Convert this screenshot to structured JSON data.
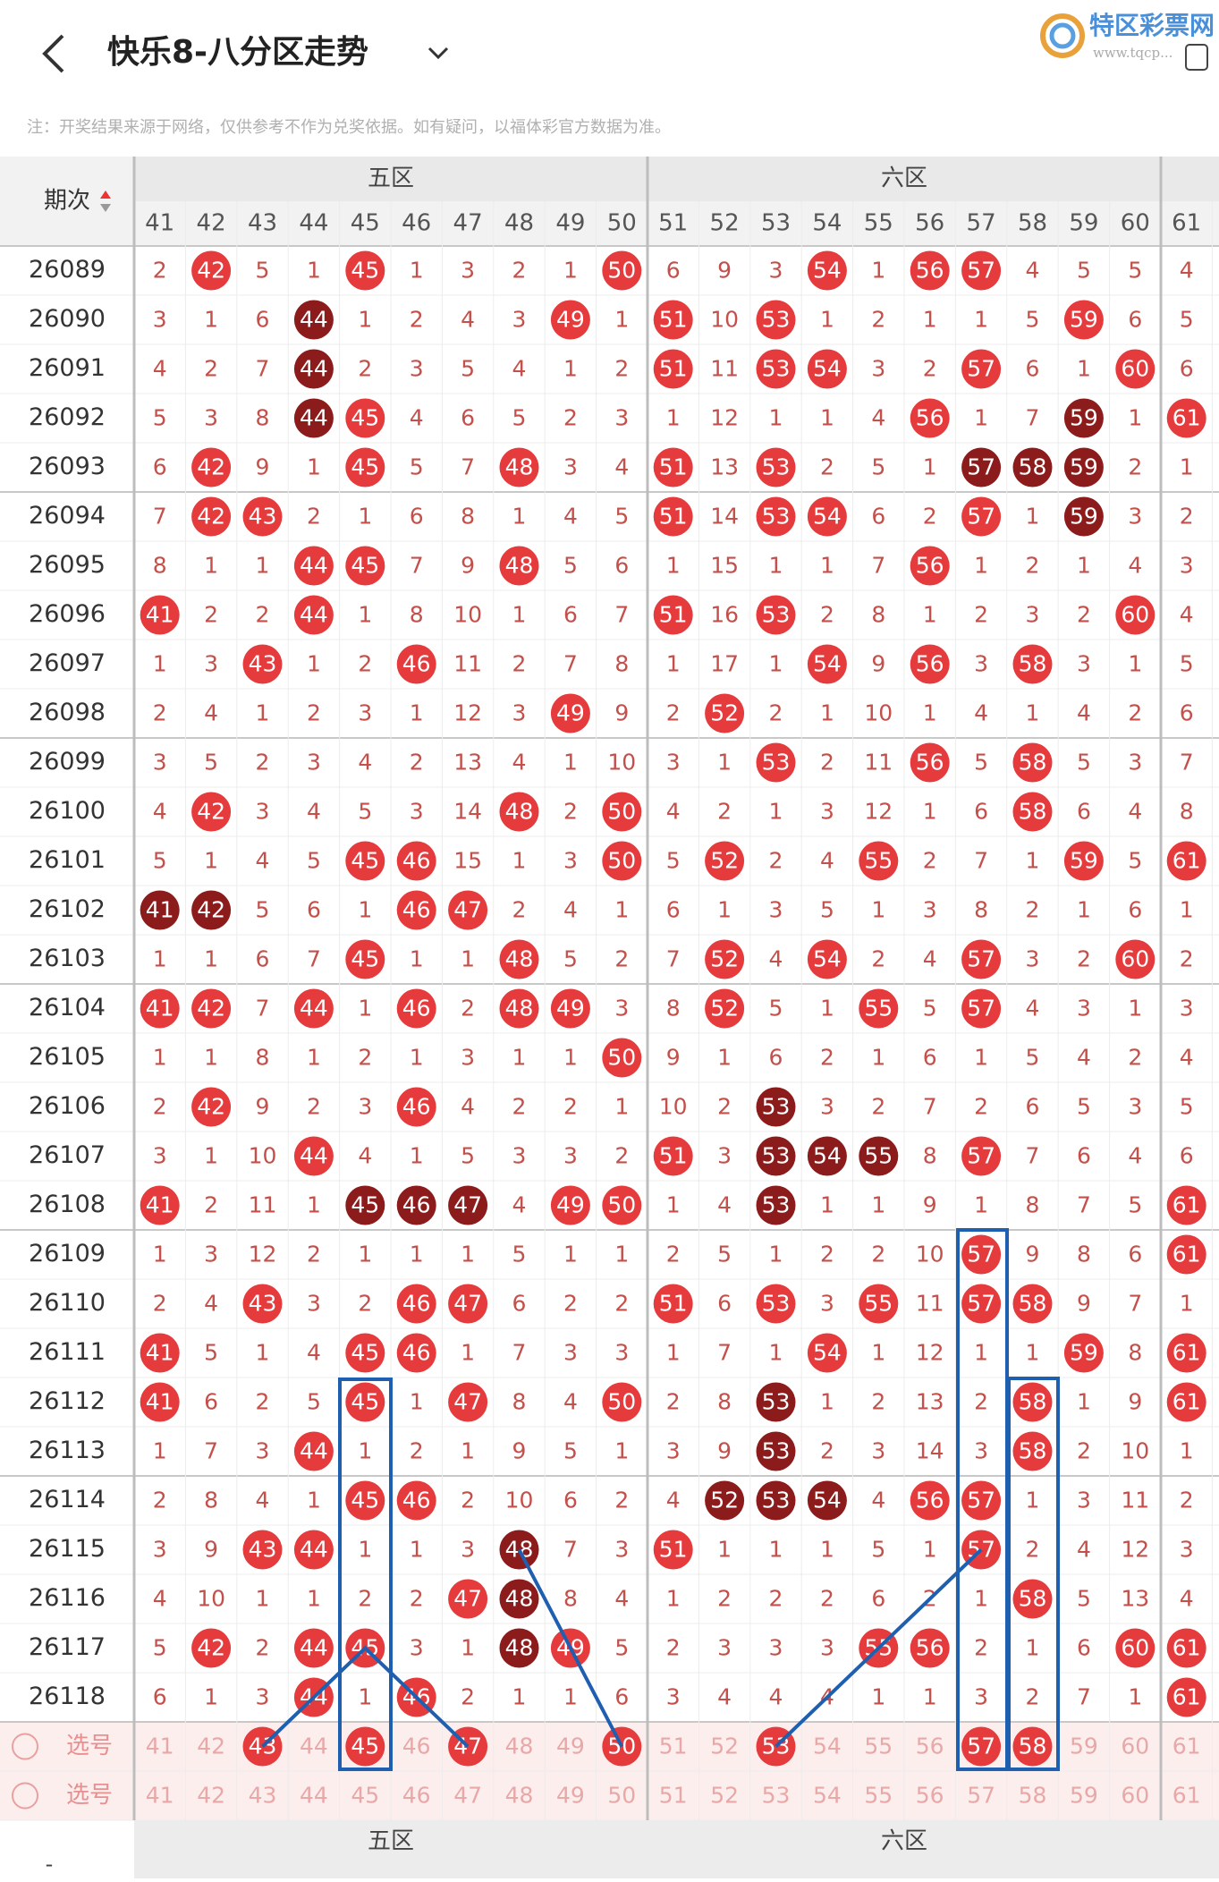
{
  "header": {
    "title": "快乐8-八分区走势",
    "logo": "特区彩票网",
    "logo_url": "www.tqcp..."
  },
  "note": "注：开奖结果来源于网络，仅供参考不作为兑奖依据。如有疑问，以福体彩官方数据为准。",
  "table": {
    "period_label": "期次",
    "zones": [
      "五区",
      "六区"
    ],
    "columns": [
      41,
      42,
      43,
      44,
      45,
      46,
      47,
      48,
      49,
      50,
      51,
      52,
      53,
      54,
      55,
      56,
      57,
      58,
      59,
      60,
      61
    ],
    "rows": [
      {
        "period": "26089",
        "values": [
          2,
          42,
          5,
          1,
          45,
          1,
          3,
          2,
          1,
          50,
          6,
          9,
          3,
          54,
          1,
          56,
          57,
          4,
          5,
          5,
          4
        ]
      },
      {
        "period": "26090",
        "values": [
          3,
          1,
          6,
          44,
          1,
          2,
          4,
          3,
          49,
          1,
          51,
          10,
          53,
          1,
          2,
          1,
          1,
          5,
          59,
          6,
          5
        ],
        "dark": [
          44
        ]
      },
      {
        "period": "26091",
        "values": [
          4,
          2,
          7,
          44,
          2,
          3,
          5,
          4,
          1,
          2,
          51,
          11,
          53,
          54,
          3,
          2,
          57,
          6,
          1,
          60,
          6
        ],
        "dark": [
          44
        ]
      },
      {
        "period": "26092",
        "values": [
          5,
          3,
          8,
          44,
          45,
          4,
          6,
          5,
          2,
          3,
          1,
          12,
          1,
          1,
          4,
          56,
          1,
          7,
          59,
          1,
          61
        ],
        "dark": [
          44,
          59
        ]
      },
      {
        "period": "26093",
        "values": [
          6,
          42,
          9,
          1,
          45,
          5,
          7,
          48,
          3,
          4,
          51,
          13,
          53,
          2,
          5,
          1,
          57,
          58,
          59,
          2,
          1
        ],
        "dark": [
          57,
          58,
          59
        ]
      },
      {
        "period": "26094",
        "values": [
          7,
          42,
          43,
          2,
          1,
          6,
          8,
          1,
          4,
          5,
          51,
          14,
          53,
          54,
          6,
          2,
          57,
          1,
          59,
          3,
          2
        ],
        "dark": [
          59
        ]
      },
      {
        "period": "26095",
        "values": [
          8,
          1,
          1,
          44,
          45,
          7,
          9,
          48,
          5,
          6,
          1,
          15,
          1,
          1,
          7,
          56,
          1,
          2,
          1,
          4,
          3
        ]
      },
      {
        "period": "26096",
        "values": [
          41,
          2,
          2,
          44,
          1,
          8,
          10,
          1,
          6,
          7,
          51,
          16,
          53,
          2,
          8,
          1,
          2,
          3,
          2,
          60,
          4
        ]
      },
      {
        "period": "26097",
        "values": [
          1,
          3,
          43,
          1,
          2,
          46,
          11,
          2,
          7,
          8,
          1,
          17,
          1,
          54,
          9,
          56,
          3,
          58,
          3,
          1,
          5
        ]
      },
      {
        "period": "26098",
        "values": [
          2,
          4,
          1,
          2,
          3,
          1,
          12,
          3,
          49,
          9,
          2,
          52,
          2,
          1,
          10,
          1,
          4,
          1,
          4,
          2,
          6
        ]
      },
      {
        "period": "26099",
        "values": [
          3,
          5,
          2,
          3,
          4,
          2,
          13,
          4,
          1,
          10,
          3,
          1,
          53,
          2,
          11,
          56,
          5,
          58,
          5,
          3,
          7
        ]
      },
      {
        "period": "26100",
        "values": [
          4,
          42,
          3,
          4,
          5,
          3,
          14,
          48,
          2,
          50,
          4,
          2,
          1,
          3,
          12,
          1,
          6,
          58,
          6,
          4,
          8
        ]
      },
      {
        "period": "26101",
        "values": [
          5,
          1,
          4,
          5,
          45,
          46,
          15,
          1,
          3,
          50,
          5,
          52,
          2,
          4,
          55,
          2,
          7,
          1,
          59,
          5,
          61
        ]
      },
      {
        "period": "26102",
        "values": [
          41,
          42,
          5,
          6,
          1,
          46,
          47,
          2,
          4,
          1,
          6,
          1,
          3,
          5,
          1,
          3,
          8,
          2,
          1,
          6,
          1
        ],
        "dark": [
          41,
          42
        ]
      },
      {
        "period": "26103",
        "values": [
          1,
          1,
          6,
          7,
          45,
          1,
          1,
          48,
          5,
          2,
          7,
          52,
          4,
          54,
          2,
          4,
          57,
          3,
          2,
          60,
          2
        ]
      },
      {
        "period": "26104",
        "values": [
          41,
          42,
          7,
          44,
          1,
          46,
          2,
          48,
          49,
          3,
          8,
          52,
          5,
          1,
          55,
          5,
          57,
          4,
          3,
          1,
          3
        ]
      },
      {
        "period": "26105",
        "values": [
          1,
          1,
          8,
          1,
          2,
          1,
          3,
          1,
          1,
          50,
          9,
          1,
          6,
          2,
          1,
          6,
          1,
          5,
          4,
          2,
          4
        ]
      },
      {
        "period": "26106",
        "values": [
          2,
          42,
          9,
          2,
          3,
          46,
          4,
          2,
          2,
          1,
          10,
          2,
          53,
          3,
          2,
          7,
          2,
          6,
          5,
          3,
          5
        ],
        "dark": [
          53
        ]
      },
      {
        "period": "26107",
        "values": [
          3,
          1,
          10,
          44,
          4,
          1,
          5,
          3,
          3,
          2,
          51,
          3,
          53,
          54,
          55,
          8,
          57,
          7,
          6,
          4,
          6
        ],
        "dark": [
          53,
          54,
          55
        ]
      },
      {
        "period": "26108",
        "values": [
          41,
          2,
          11,
          1,
          45,
          46,
          47,
          4,
          49,
          50,
          1,
          4,
          53,
          1,
          1,
          9,
          1,
          8,
          7,
          5,
          61
        ],
        "dark": [
          45,
          46,
          47,
          53
        ]
      },
      {
        "period": "26109",
        "values": [
          1,
          3,
          12,
          2,
          1,
          1,
          1,
          5,
          1,
          1,
          2,
          5,
          1,
          2,
          2,
          10,
          57,
          9,
          8,
          6,
          61
        ]
      },
      {
        "period": "26110",
        "values": [
          2,
          4,
          43,
          3,
          2,
          46,
          47,
          6,
          2,
          2,
          51,
          6,
          53,
          3,
          55,
          11,
          57,
          58,
          9,
          7,
          1
        ]
      },
      {
        "period": "26111",
        "values": [
          41,
          5,
          1,
          4,
          45,
          46,
          1,
          7,
          3,
          3,
          1,
          7,
          1,
          54,
          1,
          12,
          1,
          1,
          59,
          8,
          61
        ]
      },
      {
        "period": "26112",
        "values": [
          41,
          6,
          2,
          5,
          45,
          1,
          47,
          8,
          4,
          50,
          2,
          8,
          53,
          1,
          2,
          13,
          2,
          58,
          1,
          9,
          61
        ],
        "dark": [
          53
        ]
      },
      {
        "period": "26113",
        "values": [
          1,
          7,
          3,
          44,
          1,
          2,
          1,
          9,
          5,
          1,
          3,
          9,
          53,
          2,
          3,
          14,
          3,
          58,
          2,
          10,
          1
        ],
        "dark": [
          53
        ]
      },
      {
        "period": "26114",
        "values": [
          2,
          8,
          4,
          1,
          45,
          46,
          2,
          10,
          6,
          2,
          4,
          52,
          53,
          54,
          4,
          56,
          57,
          1,
          3,
          11,
          2
        ],
        "dark": [
          52,
          53,
          54
        ]
      },
      {
        "period": "26115",
        "values": [
          3,
          9,
          43,
          44,
          1,
          1,
          3,
          48,
          7,
          3,
          51,
          1,
          1,
          1,
          5,
          1,
          57,
          2,
          4,
          12,
          3
        ],
        "dark": [
          48
        ]
      },
      {
        "period": "26116",
        "values": [
          4,
          10,
          1,
          1,
          2,
          2,
          47,
          48,
          8,
          4,
          1,
          2,
          2,
          2,
          6,
          2,
          1,
          58,
          5,
          13,
          4
        ],
        "dark": [
          48
        ]
      },
      {
        "period": "26117",
        "values": [
          5,
          42,
          2,
          44,
          45,
          3,
          1,
          48,
          49,
          5,
          2,
          3,
          3,
          3,
          55,
          56,
          2,
          1,
          6,
          60,
          61
        ],
        "dark": [
          48
        ]
      },
      {
        "period": "26118",
        "values": [
          6,
          1,
          3,
          44,
          1,
          46,
          2,
          1,
          1,
          6,
          3,
          4,
          4,
          4,
          1,
          1,
          3,
          2,
          7,
          1,
          61
        ]
      }
    ],
    "select_label": "选号",
    "selected": [
      43,
      45,
      47,
      50,
      53,
      57,
      58
    ]
  },
  "footer": {
    "zones": [
      "五区",
      "六区"
    ],
    "dash": "-"
  }
}
